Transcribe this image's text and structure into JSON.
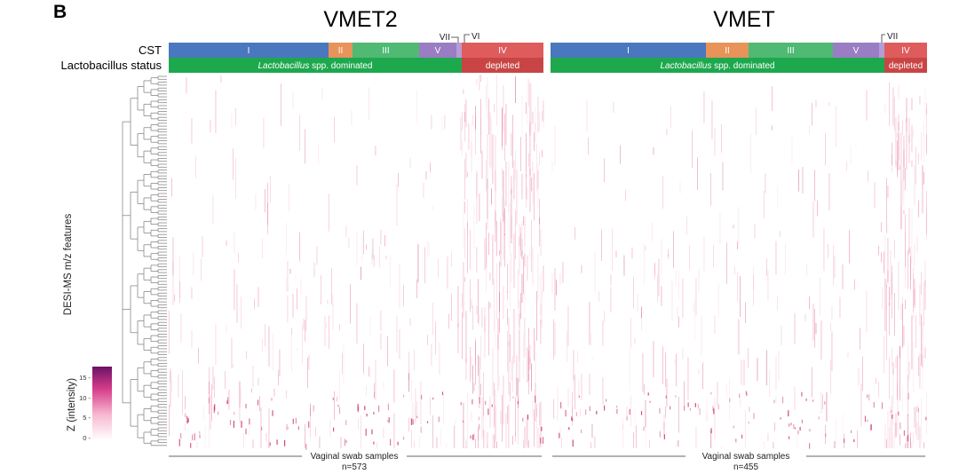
{
  "figure": {
    "panel_letter": "B",
    "row_labels": {
      "cst": "CST",
      "lactobacillus": "Lactobacillus status"
    },
    "y_axis_label": "DESI-MS m/z features",
    "colorbar": {
      "label": "Z (intensity)",
      "ticks": [
        "15 -",
        "10 -",
        "5 -",
        "0 -"
      ]
    }
  },
  "chart_data": [
    {
      "type": "heatmap",
      "title": "VMET2",
      "xlabel": "Vaginal swab samples",
      "n_label": "n=573",
      "cst": [
        {
          "label": "I",
          "color": "#4a78bf"
        },
        {
          "label": "II",
          "color": "#e8935a"
        },
        {
          "label": "III",
          "color": "#50b973"
        },
        {
          "label": "V",
          "color": "#9a7dc3"
        },
        {
          "label": "",
          "color": "#b79bd6"
        },
        {
          "label": "IV",
          "color": "#de5c5c"
        }
      ],
      "cst_callouts": [
        "VII",
        "VI"
      ],
      "lactobacillus": [
        {
          "label_italic": "Lactobacillus",
          "label_rest": " spp. dominated",
          "color": "#1ea84e"
        },
        {
          "label_italic": "",
          "label_rest": "depleted",
          "color": "#c94545"
        }
      ]
    },
    {
      "type": "heatmap",
      "title": "VMET",
      "xlabel": "Vaginal swab samples",
      "n_label": "n=455",
      "cst": [
        {
          "label": "I",
          "color": "#4a78bf"
        },
        {
          "label": "II",
          "color": "#e8935a"
        },
        {
          "label": "III",
          "color": "#50b973"
        },
        {
          "label": "V",
          "color": "#9a7dc3"
        },
        {
          "label": "",
          "color": "#b79bd6"
        },
        {
          "label": "IV",
          "color": "#de5c5c"
        }
      ],
      "cst_callouts": [
        "VII"
      ],
      "lactobacillus": [
        {
          "label_italic": "Lactobacillus",
          "label_rest": " spp. dominated",
          "color": "#1ea84e"
        },
        {
          "label_italic": "",
          "label_rest": "depleted",
          "color": "#c94545"
        }
      ]
    }
  ]
}
